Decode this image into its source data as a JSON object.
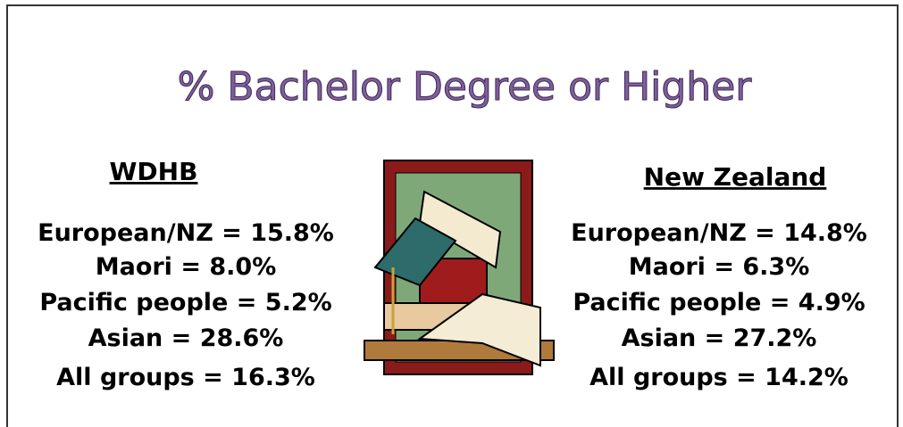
{
  "title": "% Bachelor Degree or Higher",
  "left": {
    "heading": "WDHB",
    "lines": [
      "European/NZ = 15.8%",
      "Maori = 8.0%",
      "Pacific people = 5.2%",
      "Asian = 28.6%",
      "All groups = 16.3%"
    ]
  },
  "right": {
    "heading": "New Zealand",
    "lines": [
      "European/NZ = 14.8%",
      "Maori = 6.3%",
      "Pacific people = 4.9%",
      "Asian = 27.2%",
      "All groups = 14.2%"
    ]
  }
}
